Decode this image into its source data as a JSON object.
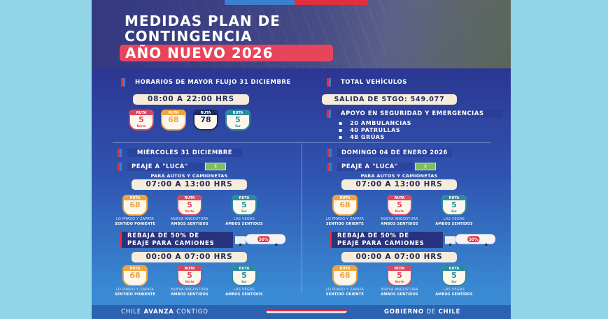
{
  "header": {
    "title_line1": "MEDIDAS PLAN DE",
    "title_line2": "CONTINGENCIA",
    "title_highlight": "AÑO NUEVO 2026"
  },
  "colors": {
    "background": "#91d5e8",
    "poster_top": "#2c3591",
    "poster_bottom": "#3a8bd4",
    "accent_red": "#e0303f",
    "accent_blue": "#3a7fd0",
    "highlight_pink": "#e8455c"
  },
  "peak": {
    "heading": "HORARIOS DE MAYOR FLUJO 31 DICIEMBRE",
    "hours": "08:00 A 22:00 HRS",
    "routes": [
      {
        "top": "RUTA",
        "num": "5",
        "sub": "Norte",
        "color": "#d94660"
      },
      {
        "top": "RUTA",
        "num": "68",
        "sub": "",
        "color": "#f0a53a"
      },
      {
        "top": "RUTA",
        "num": "78",
        "sub": "",
        "color": "#1d2a55"
      },
      {
        "top": "RUTA",
        "num": "5",
        "sub": "Sur",
        "color": "#2a8aa0"
      }
    ]
  },
  "totals": {
    "heading": "TOTAL VEHÍCULOS",
    "exit_label": "SALIDA DE STGO:",
    "exit_value": "549.077",
    "support_heading": "APOYO EN SEGURIDAD Y EMERGENCIAS",
    "support_items": [
      "20 AMBULANCIAS",
      "40 PATRULLAS",
      "48 GRÚAS"
    ]
  },
  "columns": [
    {
      "date": "MIÉRCOLES 31 DICIEMBRE",
      "luca": "PEAJE A \"LUCA\"",
      "money_icon": "banknote-icon",
      "for": "PARA AUTOS Y CAMIONETAS",
      "hours1": "07:00 A 13:00 HRS",
      "rebaja_line1": "REBAJA DE 50% DE",
      "rebaja_line2": "PEAJE PARA CAMIONES",
      "badge": "50%",
      "hours2": "00:00 A 07:00 HRS",
      "routes": [
        {
          "top": "RUTA",
          "num": "68",
          "sub": "",
          "color": "#f0a53a",
          "cap1": "LO PRADO Y ZAPATA",
          "cap2": "SENTIDO PONIENTE"
        },
        {
          "top": "RUTA",
          "num": "5",
          "sub": "Norte",
          "color": "#d94660",
          "cap1": "NUEVA ANGOSTURA",
          "cap2": "AMBOS SENTIDOS"
        },
        {
          "top": "RUTA",
          "num": "5",
          "sub": "Sur",
          "color": "#2a8aa0",
          "cap1": "LAS VEGAS",
          "cap2": "AMBOS SENTIDOS"
        }
      ]
    },
    {
      "date": "DOMINGO 04 DE ENERO 2026",
      "luca": "PEAJE A \"LUCA\"",
      "money_icon": "banknote-icon",
      "for": "PARA AUTOS Y CAMIONETAS",
      "hours1": "07:00 A 13:00 HRS",
      "rebaja_line1": "REBAJA DE 50% DE",
      "rebaja_line2": "PEAJE PARA CAMIONES",
      "badge": "50%",
      "hours2": "00:00 A 07:00 HRS",
      "routes": [
        {
          "top": "RUTA",
          "num": "68",
          "sub": "",
          "color": "#f0a53a",
          "cap1": "LO PRADO Y ZAPATA",
          "cap2": "SENTIDO ORIENTE"
        },
        {
          "top": "RUTA",
          "num": "5",
          "sub": "Norte",
          "color": "#d94660",
          "cap1": "NUEVA ANGOSTURA",
          "cap2": "AMBOS SENTIDOS"
        },
        {
          "top": "RUTA",
          "num": "5",
          "sub": "Sur",
          "color": "#2a8aa0",
          "cap1": "LAS VEGAS",
          "cap2": "AMBOS SENTIDOS"
        }
      ]
    }
  ],
  "footer": {
    "left_a": "CHILE ",
    "left_b": "AVANZA",
    "left_c": " CONTIGO",
    "right_a": "GOBIERNO",
    "right_b": " DE ",
    "right_c": "CHILE"
  }
}
